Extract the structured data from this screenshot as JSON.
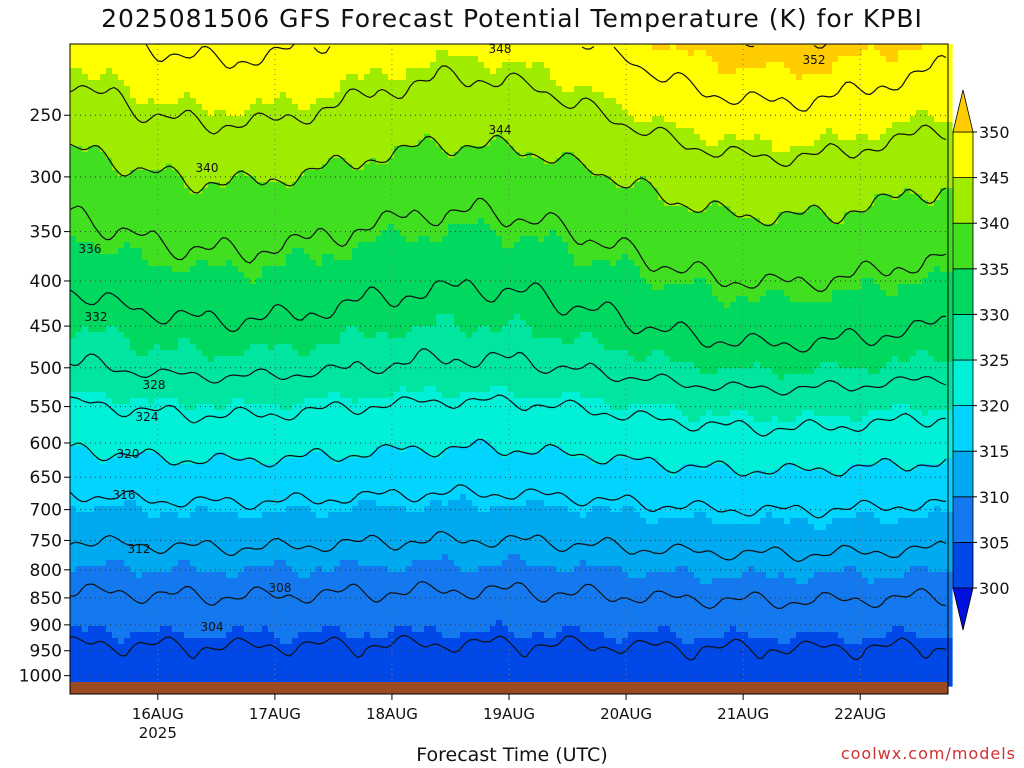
{
  "title": "2025081506 GFS Forecast Potential Temperature (K) for KPBI",
  "xlabel": "Forecast Time (UTC)",
  "credit": "coolwx.com/models",
  "chart_data": {
    "type": "heatmap",
    "title": "2025081506 GFS Forecast Potential Temperature (K) for KPBI",
    "xlabel": "Forecast Time (UTC)",
    "ylabel": "",
    "x_ticks": [
      "16AUG",
      "17AUG",
      "18AUG",
      "19AUG",
      "20AUG",
      "21AUG",
      "22AUG"
    ],
    "x_tick_year": "2025",
    "y_ticks": [
      250,
      300,
      350,
      400,
      450,
      500,
      550,
      600,
      650,
      700,
      750,
      800,
      850,
      900,
      950,
      1000
    ],
    "y_range_hPa": [
      1013,
      200
    ],
    "x_range_days": [
      15.25,
      22.75
    ],
    "grid": true,
    "colorbar": {
      "ticks": [
        300,
        305,
        310,
        315,
        320,
        325,
        330,
        335,
        340,
        345,
        350
      ],
      "colors": [
        "#0010e0",
        "#0048e8",
        "#1478ee",
        "#00aaf0",
        "#00d4ff",
        "#00f0d8",
        "#00e6a0",
        "#00d860",
        "#40e020",
        "#a0ec00",
        "#ffff00",
        "#ffcc00"
      ],
      "position": "right"
    },
    "contour_levels": [
      304,
      308,
      312,
      316,
      320,
      324,
      328,
      332,
      336,
      340,
      344,
      348,
      352
    ],
    "profile_pressure_hPa": [
      1010,
      1000,
      950,
      900,
      850,
      800,
      750,
      700,
      650,
      600,
      550,
      500,
      450,
      400,
      350,
      300,
      250,
      200
    ],
    "profile_theta_K": [
      301.5,
      302.5,
      303.5,
      305.5,
      307.5,
      309.5,
      312.0,
      314.5,
      317.5,
      320.5,
      323.5,
      327.5,
      330.0,
      332.5,
      335.0,
      338.0,
      342.0,
      346.0
    ],
    "contour_labels": [
      {
        "label": "336"
      },
      {
        "label": "340"
      },
      {
        "label": "348"
      },
      {
        "label": "352"
      },
      {
        "label": "344"
      },
      {
        "label": "332"
      },
      {
        "label": "328"
      },
      {
        "label": "324"
      },
      {
        "label": "320"
      },
      {
        "label": "316"
      },
      {
        "label": "312"
      },
      {
        "label": "308"
      },
      {
        "label": "304"
      }
    ]
  }
}
